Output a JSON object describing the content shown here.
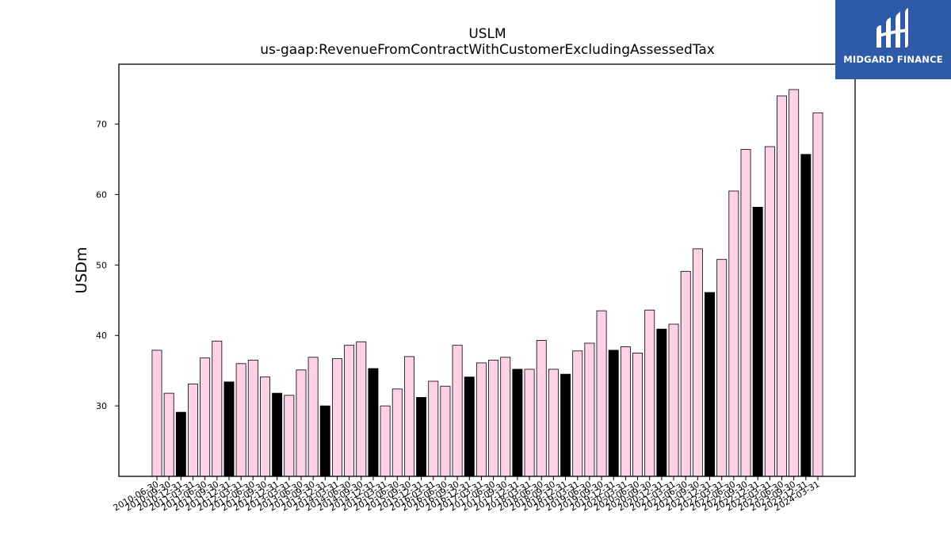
{
  "logo": {
    "text": "MIDGARD FINANCE",
    "icon": "midgard-logo-mark",
    "background": "#2e5aa8"
  },
  "chart_data": {
    "type": "bar",
    "title": "USLM",
    "subtitle": "us-gaap:RevenueFromContractWithCustomerExcludingAssessedTax",
    "xlabel": "",
    "ylabel": "USDm",
    "ylim": [
      20,
      78.5
    ],
    "yticks": [
      30,
      40,
      50,
      60,
      70
    ],
    "grid": false,
    "colors": {
      "quarter": "#ffd1e6",
      "annual": "#000000",
      "edge": "#000000"
    },
    "categories": [
      "2010-06-30",
      "2010-09-30",
      "2010-12-31",
      "2011-03-31",
      "2011-06-30",
      "2011-09-30",
      "2011-12-31",
      "2012-03-31",
      "2012-06-30",
      "2012-09-30",
      "2012-12-31",
      "2013-03-31",
      "2013-06-30",
      "2013-09-30",
      "2013-12-31",
      "2014-03-31",
      "2014-06-30",
      "2014-09-30",
      "2014-12-31",
      "2015-03-31",
      "2015-06-30",
      "2015-09-30",
      "2015-12-31",
      "2016-03-31",
      "2016-06-30",
      "2016-09-30",
      "2016-12-31",
      "2017-03-31",
      "2017-06-30",
      "2017-09-30",
      "2017-12-31",
      "2018-03-31",
      "2018-06-30",
      "2018-09-30",
      "2018-12-31",
      "2019-03-31",
      "2019-06-30",
      "2019-09-30",
      "2019-12-31",
      "2020-03-31",
      "2020-06-30",
      "2020-09-30",
      "2020-12-31",
      "2021-03-31",
      "2021-06-30",
      "2021-09-30",
      "2021-12-31",
      "2022-03-31",
      "2022-06-30",
      "2022-09-30",
      "2022-12-31",
      "2023-03-31",
      "2023-06-30",
      "2023-09-30",
      "2023-12-31",
      "2024-03-31"
    ],
    "values": [
      37.9,
      31.8,
      29.1,
      33.1,
      36.8,
      39.2,
      33.4,
      36.0,
      36.5,
      34.1,
      31.8,
      31.5,
      35.1,
      36.9,
      30.0,
      36.7,
      38.6,
      39.1,
      35.3,
      30.0,
      32.4,
      37.0,
      31.2,
      33.5,
      32.8,
      38.6,
      34.1,
      36.1,
      36.5,
      36.9,
      35.2,
      35.2,
      39.3,
      35.2,
      34.5,
      37.8,
      38.9,
      43.5,
      37.9,
      38.4,
      37.5,
      43.6,
      40.9,
      41.6,
      49.1,
      52.3,
      46.1,
      50.8,
      60.5,
      66.4,
      58.2,
      66.8,
      74.0,
      74.9,
      65.7,
      71.6
    ],
    "annual": [
      false,
      false,
      true,
      false,
      false,
      false,
      true,
      false,
      false,
      false,
      true,
      false,
      false,
      false,
      true,
      false,
      false,
      false,
      true,
      false,
      false,
      false,
      true,
      false,
      false,
      false,
      true,
      false,
      false,
      false,
      true,
      false,
      false,
      false,
      true,
      false,
      false,
      false,
      true,
      false,
      false,
      false,
      true,
      false,
      false,
      false,
      true,
      false,
      false,
      false,
      true,
      false,
      false,
      false,
      true,
      false
    ]
  }
}
